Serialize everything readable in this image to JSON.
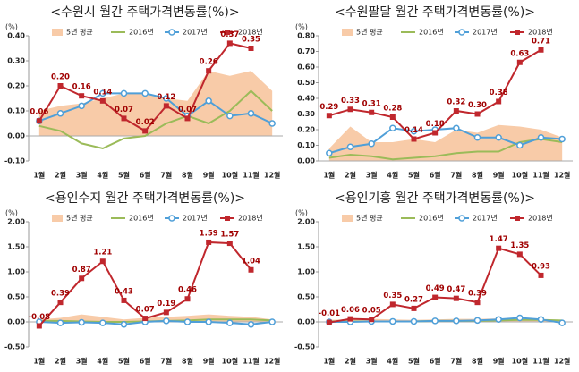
{
  "chart_data": [
    {
      "type": "line",
      "title": "<수원시 월간 주택가격변동률(%)>",
      "ylabel": "(%)",
      "categories": [
        "1월",
        "2월",
        "3월",
        "4월",
        "5월",
        "6월",
        "7월",
        "8월",
        "9월",
        "10월",
        "11월",
        "12월"
      ],
      "ylim": [
        -0.1,
        0.4
      ],
      "yticks": [
        {
          "value": -0.1,
          "label": "-0.10"
        },
        {
          "value": 0,
          "label": "0.00"
        },
        {
          "value": 0.1,
          "label": "0.10"
        },
        {
          "value": 0.2,
          "label": "0.20"
        },
        {
          "value": 0.3,
          "label": "0.30"
        },
        {
          "value": 0.4,
          "label": "0.40"
        }
      ],
      "series": [
        {
          "name": "5년 평균",
          "kind": "area",
          "color": "#f8cba8",
          "values": [
            0.1,
            0.12,
            0.13,
            0.15,
            0.17,
            0.17,
            0.15,
            0.14,
            0.26,
            0.24,
            0.26,
            0.18
          ]
        },
        {
          "name": "2016년",
          "color": "#9bbb59",
          "values": [
            0.04,
            0.02,
            -0.03,
            -0.05,
            -0.01,
            0.0,
            0.05,
            0.08,
            0.05,
            0.1,
            0.18,
            0.1
          ]
        },
        {
          "name": "2017년",
          "color": "#4f9fd8",
          "marker": "circle",
          "values": [
            0.06,
            0.09,
            0.12,
            0.17,
            0.17,
            0.17,
            0.15,
            0.08,
            0.14,
            0.08,
            0.09,
            0.05
          ]
        },
        {
          "name": "2018년",
          "color": "#c0272d",
          "marker": "square",
          "values": [
            0.06,
            0.2,
            0.16,
            0.14,
            0.07,
            0.02,
            0.12,
            0.07,
            0.26,
            0.37,
            0.35,
            null
          ],
          "value_labels": [
            "0.06",
            "0.20",
            "0.16",
            "0.14",
            "0.07",
            "0.02",
            "0.12",
            "0.07",
            "0.26",
            "0.37",
            "0.35",
            null
          ]
        }
      ]
    },
    {
      "type": "line",
      "title": "<수원팔달 월간 주택가격변동률(%)>",
      "ylabel": "(%)",
      "categories": [
        "1월",
        "2월",
        "3월",
        "4월",
        "5월",
        "6월",
        "7월",
        "8월",
        "9월",
        "10월",
        "11월",
        "12월"
      ],
      "ylim": [
        0,
        0.8
      ],
      "yticks": [
        {
          "value": 0,
          "label": "0.00"
        },
        {
          "value": 0.1,
          "label": "0.10"
        },
        {
          "value": 0.2,
          "label": "0.20"
        },
        {
          "value": 0.3,
          "label": "0.30"
        },
        {
          "value": 0.4,
          "label": "0.40"
        },
        {
          "value": 0.5,
          "label": "0.50"
        },
        {
          "value": 0.6,
          "label": "0.60"
        },
        {
          "value": 0.7,
          "label": "0.70"
        },
        {
          "value": 0.8,
          "label": "0.80"
        }
      ],
      "series": [
        {
          "name": "5년 평균",
          "kind": "area",
          "color": "#f8cba8",
          "values": [
            0.08,
            0.22,
            0.12,
            0.12,
            0.14,
            0.12,
            0.2,
            0.18,
            0.23,
            0.22,
            0.2,
            0.15
          ]
        },
        {
          "name": "2016년",
          "color": "#9bbb59",
          "values": [
            0.02,
            0.04,
            0.03,
            0.01,
            0.02,
            0.03,
            0.05,
            0.06,
            0.06,
            0.12,
            0.14,
            0.12
          ]
        },
        {
          "name": "2017년",
          "color": "#4f9fd8",
          "marker": "circle",
          "values": [
            0.05,
            0.09,
            0.11,
            0.21,
            0.19,
            0.2,
            0.21,
            0.15,
            0.15,
            0.1,
            0.15,
            0.14
          ]
        },
        {
          "name": "2018년",
          "color": "#c0272d",
          "marker": "square",
          "values": [
            0.29,
            0.33,
            0.31,
            0.28,
            0.14,
            0.18,
            0.32,
            0.3,
            0.38,
            0.63,
            0.71,
            null
          ],
          "value_labels": [
            "0.29",
            "0.33",
            "0.31",
            "0.28",
            "0.14",
            "0.18",
            "0.32",
            "0.30",
            "0.38",
            "0.63",
            "0.71",
            null
          ]
        }
      ]
    },
    {
      "type": "line",
      "title": "<용인수지 월간 주택가격변동률(%)>",
      "ylabel": "(%)",
      "categories": [
        "1월",
        "2월",
        "3월",
        "4월",
        "5월",
        "6월",
        "7월",
        "8월",
        "9월",
        "10월",
        "11월",
        "12월"
      ],
      "ylim": [
        -0.5,
        2.0
      ],
      "yticks": [
        {
          "value": -0.5,
          "label": "-0.50"
        },
        {
          "value": 0,
          "label": "0.00"
        },
        {
          "value": 0.5,
          "label": "0.50"
        },
        {
          "value": 1.0,
          "label": "1.00"
        },
        {
          "value": 1.5,
          "label": "1.50"
        },
        {
          "value": 2.0,
          "label": "2.00"
        }
      ],
      "series": [
        {
          "name": "5년 평균",
          "kind": "area",
          "color": "#f8cba8",
          "values": [
            0.05,
            0.08,
            0.15,
            0.1,
            0.05,
            0.08,
            0.1,
            0.12,
            0.15,
            0.12,
            0.1,
            0.05
          ]
        },
        {
          "name": "2016년",
          "color": "#9bbb59",
          "values": [
            0.02,
            0.02,
            0.01,
            0.0,
            0.0,
            0.01,
            0.02,
            0.03,
            0.05,
            0.05,
            0.05,
            0.03
          ]
        },
        {
          "name": "2017년",
          "color": "#4f9fd8",
          "marker": "circle",
          "values": [
            0.0,
            -0.02,
            -0.01,
            -0.02,
            -0.05,
            0.0,
            0.02,
            0.0,
            0.0,
            -0.02,
            -0.05,
            0.0
          ]
        },
        {
          "name": "2018년",
          "color": "#c0272d",
          "marker": "square",
          "values": [
            -0.08,
            0.39,
            0.87,
            1.21,
            0.43,
            0.07,
            0.19,
            0.46,
            1.59,
            1.57,
            1.04,
            null
          ],
          "value_labels": [
            "-0.08",
            "0.39",
            "0.87",
            "1.21",
            "0.43",
            "0.07",
            "0.19",
            "0.46",
            "1.59",
            "1.57",
            "1.04",
            null
          ]
        }
      ]
    },
    {
      "type": "line",
      "title": "<용인기흥 월간 주택가격변동률(%)>",
      "ylabel": "(%)",
      "categories": [
        "1월",
        "2월",
        "3월",
        "4월",
        "5월",
        "6월",
        "7월",
        "8월",
        "9월",
        "10월",
        "11월",
        "12월"
      ],
      "ylim": [
        -0.5,
        2.0
      ],
      "yticks": [
        {
          "value": -0.5,
          "label": "-0.50"
        },
        {
          "value": 0,
          "label": "0.00"
        },
        {
          "value": 0.5,
          "label": "0.50"
        },
        {
          "value": 1.0,
          "label": "1.00"
        },
        {
          "value": 1.5,
          "label": "1.50"
        },
        {
          "value": 2.0,
          "label": "2.00"
        }
      ],
      "series": [
        {
          "name": "5년 평균",
          "kind": "area",
          "color": "#f8cba8",
          "values": [
            0.04,
            0.05,
            0.06,
            0.05,
            0.04,
            0.05,
            0.06,
            0.06,
            0.07,
            0.06,
            0.05,
            0.04
          ]
        },
        {
          "name": "2016년",
          "color": "#9bbb59",
          "values": [
            0.01,
            0.01,
            0.01,
            0.01,
            0.01,
            0.02,
            0.02,
            0.02,
            0.03,
            0.04,
            0.04,
            0.03
          ]
        },
        {
          "name": "2017년",
          "color": "#4f9fd8",
          "marker": "circle",
          "values": [
            0.0,
            0.0,
            0.01,
            0.01,
            0.01,
            0.02,
            0.02,
            0.03,
            0.05,
            0.08,
            0.05,
            -0.02
          ]
        },
        {
          "name": "2018년",
          "color": "#c0272d",
          "marker": "square",
          "values": [
            -0.01,
            0.06,
            0.05,
            0.35,
            0.27,
            0.49,
            0.47,
            0.39,
            1.47,
            1.35,
            0.93,
            null
          ],
          "value_labels": [
            "-0.01",
            "0.06",
            "0.05",
            "0.35",
            "0.27",
            "0.49",
            "0.47",
            "0.39",
            "1.47",
            "1.35",
            "0.93",
            null
          ]
        }
      ]
    }
  ]
}
